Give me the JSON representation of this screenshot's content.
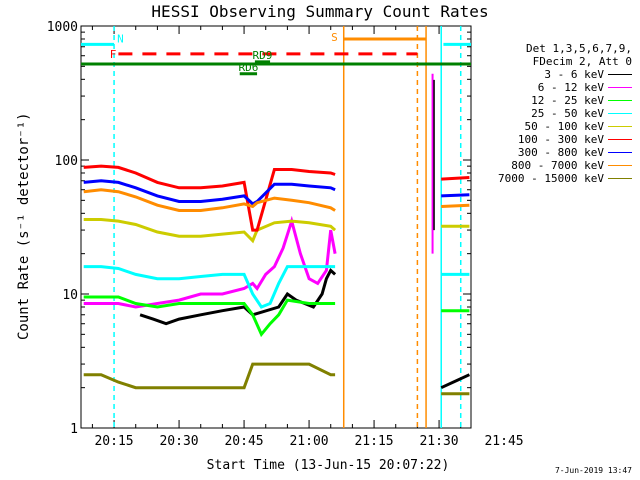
{
  "chart_data": {
    "type": "line",
    "title": "HESSI Observing Summary Count Rates",
    "xlabel": "Start Time (13-Jun-15 20:07:22)",
    "ylabel": "Count Rate (s⁻¹ detector⁻¹)",
    "ylog": true,
    "ylim": [
      1,
      1000
    ],
    "xlim": [
      7.37,
      97.37
    ],
    "x_unit": "minutes after 20:00 UT",
    "x_ticks": [
      "20:15",
      "20:30",
      "20:45",
      "21:00",
      "21:15",
      "21:30",
      "21:45"
    ],
    "y_ticks": [
      "1",
      "10",
      "100",
      "1000"
    ],
    "legend_header": [
      "Det 1,3,5,6,7,9,",
      "FDecim 2, Att 0"
    ],
    "series": [
      {
        "name": "3 - 6 keV",
        "color": "#000000",
        "x": [
          21,
          24,
          27,
          30,
          35,
          40,
          45,
          47,
          53,
          55,
          57,
          59,
          61,
          63,
          64,
          65,
          66
        ],
        "y": [
          7,
          6.5,
          6,
          6.5,
          7,
          7.5,
          8,
          7,
          8,
          10,
          9,
          8.5,
          8,
          10,
          13,
          15,
          14
        ]
      },
      {
        "name": "6 - 12 keV",
        "color": "#ff00ff",
        "x": [
          8,
          12,
          16,
          20,
          25,
          30,
          35,
          40,
          45,
          47,
          48,
          50,
          52,
          54,
          56,
          58,
          60,
          62,
          64,
          65,
          66
        ],
        "y": [
          8.5,
          8.5,
          8.5,
          8,
          8.5,
          9,
          10,
          10,
          11,
          12,
          11,
          14,
          16,
          22,
          35,
          20,
          13,
          12,
          15,
          30,
          20
        ]
      },
      {
        "name": "12 - 25 keV",
        "color": "#00ff00",
        "x": [
          8,
          12,
          16,
          20,
          25,
          30,
          35,
          40,
          45,
          47,
          49,
          51,
          53,
          55,
          60,
          65,
          66
        ],
        "y": [
          9.5,
          9.5,
          9.5,
          8.5,
          8,
          8.5,
          8.5,
          8.5,
          8.5,
          7,
          5,
          6,
          7,
          9,
          8.5,
          8.5,
          8.5
        ]
      },
      {
        "name": "25 - 50 keV",
        "color": "#00ffff",
        "x": [
          8,
          12,
          16,
          20,
          25,
          30,
          35,
          40,
          45,
          47,
          49,
          51,
          53,
          55,
          60,
          65,
          66
        ],
        "y": [
          16,
          16,
          15.5,
          14,
          13,
          13,
          13.5,
          14,
          14,
          10,
          8,
          8.5,
          12,
          16,
          16,
          16,
          16
        ]
      },
      {
        "name": "50 - 100 keV",
        "color": "#cccc00",
        "x": [
          8,
          12,
          16,
          20,
          25,
          30,
          35,
          40,
          45,
          47,
          48,
          52,
          56,
          60,
          65,
          66
        ],
        "y": [
          36,
          36,
          35,
          33,
          29,
          27,
          27,
          28,
          29,
          25,
          30,
          34,
          35,
          34,
          32,
          30
        ]
      },
      {
        "name": "100 - 300 keV",
        "color": "#ff0000",
        "x": [
          8,
          12,
          16,
          20,
          25,
          30,
          35,
          40,
          45,
          47,
          48,
          52,
          56,
          60,
          65,
          66
        ],
        "y": [
          88,
          90,
          88,
          80,
          68,
          62,
          62,
          64,
          68,
          30,
          30,
          85,
          85,
          82,
          80,
          78
        ]
      },
      {
        "name": "300 - 800 keV",
        "color": "#0000ff",
        "x": [
          8,
          12,
          16,
          20,
          25,
          30,
          35,
          40,
          45,
          47,
          48,
          52,
          56,
          60,
          65,
          66
        ],
        "y": [
          68,
          70,
          68,
          62,
          54,
          49,
          49,
          51,
          54,
          47,
          49,
          66,
          66,
          64,
          62,
          60
        ]
      },
      {
        "name": "800 - 7000 keV",
        "color": "#ff8c00",
        "x": [
          8,
          12,
          16,
          20,
          25,
          30,
          35,
          40,
          45,
          47,
          48,
          52,
          56,
          60,
          65,
          66
        ],
        "y": [
          58,
          60,
          58,
          53,
          46,
          42,
          42,
          44,
          47,
          45,
          48,
          52,
          50,
          48,
          44,
          42
        ]
      },
      {
        "name": "7000 - 15000 keV",
        "color": "#808000",
        "x": [
          8,
          12,
          16,
          20,
          25,
          30,
          35,
          40,
          45,
          47,
          50,
          55,
          60,
          65,
          66
        ],
        "y": [
          2.5,
          2.5,
          2.2,
          2,
          2,
          2,
          2,
          2,
          2,
          3,
          3,
          3,
          3,
          2.5,
          2.5
        ]
      }
    ],
    "post_gap_series": [
      {
        "name": "100 - 300 keV",
        "x": [
          90.5,
          97
        ],
        "y": [
          72,
          74
        ]
      },
      {
        "name": "300 - 800 keV",
        "x": [
          90.5,
          97
        ],
        "y": [
          54,
          55
        ]
      },
      {
        "name": "800 - 7000 keV",
        "x": [
          90.5,
          97
        ],
        "y": [
          45,
          46
        ]
      },
      {
        "name": "50 - 100 keV",
        "x": [
          90.5,
          97
        ],
        "y": [
          32,
          32
        ]
      },
      {
        "name": "25 - 50 keV",
        "x": [
          90.5,
          97
        ],
        "y": [
          14,
          14
        ]
      },
      {
        "name": "12 - 25 keV",
        "x": [
          90.5,
          97
        ],
        "y": [
          7.5,
          7.5
        ]
      },
      {
        "name": "7000 - 15000 keV",
        "x": [
          90.5,
          97
        ],
        "y": [
          1.8,
          1.8
        ]
      },
      {
        "name": "3 - 6 keV",
        "x": [
          90.5,
          97
        ],
        "y": [
          2,
          2.5
        ]
      }
    ],
    "spike": {
      "x": 88.5,
      "y": 440,
      "color": "#ff00ff"
    },
    "flags": [
      {
        "label": "N",
        "color": "#00ffff",
        "y": 730,
        "spans": [
          [
            7.37,
            15
          ],
          [
            91,
            97.37
          ]
        ]
      },
      {
        "label": "F",
        "color": "#ff0000",
        "y": 620,
        "dashed": true,
        "spans": [
          [
            16,
            85
          ]
        ]
      },
      {
        "label": "S",
        "color": "#ff8c00",
        "y": 800,
        "spans": [
          [
            68,
            87
          ]
        ]
      },
      {
        "label": "",
        "color": "#008000",
        "y": 520,
        "spans": [
          [
            7.37,
            97.37
          ]
        ]
      },
      {
        "label": "RD6",
        "color": "#008000",
        "y": 440,
        "spans": [
          [
            44,
            48
          ]
        ]
      },
      {
        "label": "RD9",
        "color": "#008000",
        "y": 540,
        "spans": [
          [
            47.5,
            51
          ]
        ]
      }
    ],
    "vlines": [
      {
        "x": 15,
        "color": "#00ffff",
        "dashed": true
      },
      {
        "x": 68,
        "color": "#ff8c00",
        "dashed": false
      },
      {
        "x": 85,
        "color": "#ff8c00",
        "dashed": true
      },
      {
        "x": 87,
        "color": "#ff8c00",
        "dashed": false
      },
      {
        "x": 90.5,
        "color": "#00ffff",
        "dashed": false
      },
      {
        "x": 95,
        "color": "#00ffff",
        "dashed": true
      }
    ]
  },
  "footer": {
    "timestamp": "7-Jun-2019 13:47"
  }
}
